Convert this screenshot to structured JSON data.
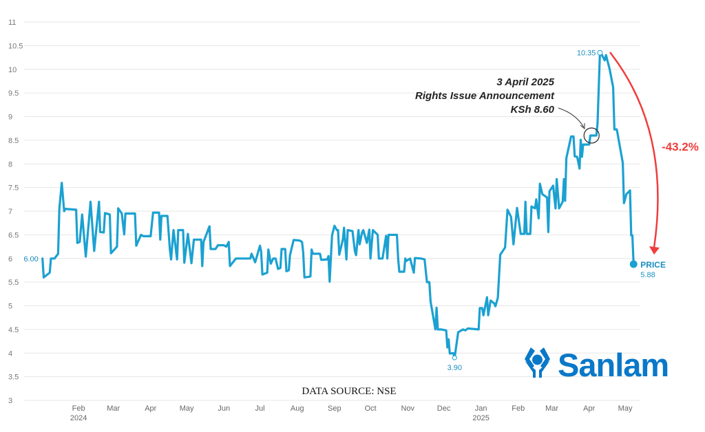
{
  "chart_data": {
    "type": "line",
    "title": "",
    "xlabel": "",
    "ylabel": "",
    "ylim": [
      3,
      11
    ],
    "yticks": [
      "3",
      "3.5",
      "4",
      "4.5",
      "5",
      "5.5",
      "6",
      "6.5",
      "7",
      "7.5",
      "8",
      "8.5",
      "9",
      "9.5",
      "10",
      "10.5",
      "11"
    ],
    "xticks": [
      {
        "date": "2024-02-01",
        "label": "Feb",
        "year": "2024"
      },
      {
        "date": "2024-03-01",
        "label": "Mar"
      },
      {
        "date": "2024-04-01",
        "label": "Apr"
      },
      {
        "date": "2024-05-01",
        "label": "May"
      },
      {
        "date": "2024-06-01",
        "label": "Jun"
      },
      {
        "date": "2024-07-01",
        "label": "Jul"
      },
      {
        "date": "2024-08-01",
        "label": "Aug"
      },
      {
        "date": "2024-09-01",
        "label": "Sep"
      },
      {
        "date": "2024-10-01",
        "label": "Oct"
      },
      {
        "date": "2024-11-01",
        "label": "Nov"
      },
      {
        "date": "2024-12-01",
        "label": "Dec"
      },
      {
        "date": "2025-01-01",
        "label": "Jan",
        "year": "2025"
      },
      {
        "date": "2025-02-01",
        "label": "Feb"
      },
      {
        "date": "2025-03-01",
        "label": "Mar"
      },
      {
        "date": "2025-04-01",
        "label": "Apr"
      },
      {
        "date": "2025-05-01",
        "label": "May"
      }
    ],
    "grid": true,
    "series_color": "#1ba1d1",
    "series": [
      {
        "name": "PRICE",
        "points": [
          [
            "2024-01-02",
            6.0
          ],
          [
            "2024-01-03",
            5.6
          ],
          [
            "2024-01-08",
            5.7
          ],
          [
            "2024-01-09",
            6.0
          ],
          [
            "2024-01-12",
            6.0
          ],
          [
            "2024-01-15",
            6.1
          ],
          [
            "2024-01-16",
            7.05
          ],
          [
            "2024-01-18",
            7.6
          ],
          [
            "2024-01-20",
            7.0
          ],
          [
            "2024-01-21",
            7.05
          ],
          [
            "2024-01-30",
            7.03
          ],
          [
            "2024-01-31",
            6.33
          ],
          [
            "2024-02-02",
            6.35
          ],
          [
            "2024-02-04",
            6.93
          ],
          [
            "2024-02-07",
            6.04
          ],
          [
            "2024-02-11",
            7.2
          ],
          [
            "2024-02-14",
            6.16
          ],
          [
            "2024-02-18",
            7.2
          ],
          [
            "2024-02-19",
            6.56
          ],
          [
            "2024-02-22",
            6.55
          ],
          [
            "2024-02-23",
            6.96
          ],
          [
            "2024-02-27",
            6.93
          ],
          [
            "2024-02-28",
            6.11
          ],
          [
            "2024-03-04",
            6.25
          ],
          [
            "2024-03-05",
            7.06
          ],
          [
            "2024-03-08",
            6.95
          ],
          [
            "2024-03-10",
            6.51
          ],
          [
            "2024-03-11",
            6.95
          ],
          [
            "2024-03-19",
            6.95
          ],
          [
            "2024-03-20",
            6.27
          ],
          [
            "2024-03-24",
            6.5
          ],
          [
            "2024-03-26",
            6.47
          ],
          [
            "2024-04-01",
            6.47
          ],
          [
            "2024-04-03",
            6.97
          ],
          [
            "2024-04-08",
            6.97
          ],
          [
            "2024-04-09",
            6.4
          ],
          [
            "2024-04-10",
            6.9
          ],
          [
            "2024-04-15",
            6.9
          ],
          [
            "2024-04-17",
            6.2
          ],
          [
            "2024-04-18",
            5.98
          ],
          [
            "2024-04-20",
            6.6
          ],
          [
            "2024-04-23",
            5.98
          ],
          [
            "2024-04-24",
            6.6
          ],
          [
            "2024-04-28",
            6.6
          ],
          [
            "2024-04-29",
            5.91
          ],
          [
            "2024-05-02",
            6.52
          ],
          [
            "2024-05-05",
            5.9
          ],
          [
            "2024-05-07",
            6.4
          ],
          [
            "2024-05-13",
            6.4
          ],
          [
            "2024-05-14",
            5.84
          ],
          [
            "2024-05-15",
            6.35
          ],
          [
            "2024-05-20",
            6.68
          ],
          [
            "2024-05-21",
            6.2
          ],
          [
            "2024-05-25",
            6.2
          ],
          [
            "2024-05-27",
            6.28
          ],
          [
            "2024-06-01",
            6.28
          ],
          [
            "2024-06-03",
            6.25
          ],
          [
            "2024-06-05",
            6.35
          ],
          [
            "2024-06-06",
            5.84
          ],
          [
            "2024-06-11",
            6.0
          ],
          [
            "2024-06-23",
            6.0
          ],
          [
            "2024-06-24",
            6.1
          ],
          [
            "2024-06-27",
            5.92
          ],
          [
            "2024-07-01",
            6.27
          ],
          [
            "2024-07-02",
            6.15
          ],
          [
            "2024-07-03",
            5.66
          ],
          [
            "2024-07-07",
            5.7
          ],
          [
            "2024-07-08",
            6.19
          ],
          [
            "2024-07-10",
            5.89
          ],
          [
            "2024-07-12",
            6.0
          ],
          [
            "2024-07-14",
            6.0
          ],
          [
            "2024-07-16",
            5.78
          ],
          [
            "2024-07-18",
            5.8
          ],
          [
            "2024-07-19",
            6.2
          ],
          [
            "2024-07-22",
            6.2
          ],
          [
            "2024-07-23",
            5.73
          ],
          [
            "2024-07-25",
            5.75
          ],
          [
            "2024-07-26",
            6.07
          ],
          [
            "2024-07-29",
            6.39
          ],
          [
            "2024-08-03",
            6.38
          ],
          [
            "2024-08-05",
            6.35
          ],
          [
            "2024-08-06",
            6.13
          ],
          [
            "2024-08-07",
            5.6
          ],
          [
            "2024-08-12",
            5.62
          ],
          [
            "2024-08-13",
            6.19
          ],
          [
            "2024-08-14",
            6.1
          ],
          [
            "2024-08-20",
            6.1
          ],
          [
            "2024-08-21",
            5.97
          ],
          [
            "2024-08-26",
            5.98
          ],
          [
            "2024-08-27",
            6.05
          ],
          [
            "2024-08-28",
            5.51
          ],
          [
            "2024-08-30",
            6.49
          ],
          [
            "2024-09-01",
            6.69
          ],
          [
            "2024-09-03",
            6.6
          ],
          [
            "2024-09-04",
            6.6
          ],
          [
            "2024-09-05",
            6.08
          ],
          [
            "2024-09-08",
            6.4
          ],
          [
            "2024-09-09",
            6.65
          ],
          [
            "2024-09-11",
            5.98
          ],
          [
            "2024-09-12",
            6.6
          ],
          [
            "2024-09-16",
            6.58
          ],
          [
            "2024-09-18",
            6.16
          ],
          [
            "2024-09-19",
            6.07
          ],
          [
            "2024-09-21",
            6.6
          ],
          [
            "2024-09-22",
            6.3
          ],
          [
            "2024-09-24",
            6.55
          ],
          [
            "2024-09-25",
            6.6
          ],
          [
            "2024-09-28",
            6.33
          ],
          [
            "2024-09-30",
            6.61
          ],
          [
            "2024-10-01",
            6.0
          ],
          [
            "2024-10-03",
            6.6
          ],
          [
            "2024-10-07",
            6.5
          ],
          [
            "2024-10-08",
            6.0
          ],
          [
            "2024-10-11",
            6.0
          ],
          [
            "2024-10-14",
            6.48
          ],
          [
            "2024-10-15",
            6.0
          ],
          [
            "2024-10-16",
            6.5
          ],
          [
            "2024-10-23",
            6.5
          ],
          [
            "2024-10-24",
            6.0
          ],
          [
            "2024-10-25",
            5.72
          ],
          [
            "2024-10-29",
            5.72
          ],
          [
            "2024-10-30",
            6.0
          ],
          [
            "2024-10-31",
            5.95
          ],
          [
            "2024-11-03",
            6.0
          ],
          [
            "2024-11-06",
            5.7
          ],
          [
            "2024-11-07",
            6.01
          ],
          [
            "2024-11-12",
            6.0
          ],
          [
            "2024-11-15",
            5.98
          ],
          [
            "2024-11-17",
            5.5
          ],
          [
            "2024-11-19",
            5.5
          ],
          [
            "2024-11-20",
            5.09
          ],
          [
            "2024-11-24",
            4.5
          ],
          [
            "2024-11-25",
            4.96
          ],
          [
            "2024-11-26",
            4.5
          ],
          [
            "2024-11-29",
            4.5
          ],
          [
            "2024-12-03",
            4.48
          ],
          [
            "2024-12-04",
            4.12
          ],
          [
            "2024-12-05",
            4.29
          ],
          [
            "2024-12-06",
            3.99
          ],
          [
            "2024-12-09",
            4.0
          ],
          [
            "2024-12-10",
            3.9
          ],
          [
            "2024-12-13",
            4.44
          ],
          [
            "2024-12-17",
            4.5
          ],
          [
            "2024-12-19",
            4.48
          ],
          [
            "2024-12-21",
            4.52
          ],
          [
            "2024-12-30",
            4.5
          ],
          [
            "2024-12-31",
            4.95
          ],
          [
            "2025-01-02",
            4.95
          ],
          [
            "2025-01-03",
            4.8
          ],
          [
            "2025-01-06",
            5.18
          ],
          [
            "2025-01-07",
            4.8
          ],
          [
            "2025-01-09",
            5.11
          ],
          [
            "2025-01-12",
            5.05
          ],
          [
            "2025-01-13",
            4.99
          ],
          [
            "2025-01-15",
            5.17
          ],
          [
            "2025-01-17",
            6.08
          ],
          [
            "2025-01-21",
            6.23
          ],
          [
            "2025-01-23",
            7.03
          ],
          [
            "2025-01-26",
            6.88
          ],
          [
            "2025-01-28",
            6.3
          ],
          [
            "2025-01-31",
            7.07
          ],
          [
            "2025-02-03",
            6.52
          ],
          [
            "2025-02-06",
            6.52
          ],
          [
            "2025-02-07",
            7.2
          ],
          [
            "2025-02-08",
            6.52
          ],
          [
            "2025-02-11",
            6.52
          ],
          [
            "2025-02-12",
            7.1
          ],
          [
            "2025-02-15",
            7.06
          ],
          [
            "2025-02-16",
            7.25
          ],
          [
            "2025-02-18",
            6.85
          ],
          [
            "2025-02-19",
            7.58
          ],
          [
            "2025-02-21",
            7.36
          ],
          [
            "2025-02-25",
            7.29
          ],
          [
            "2025-02-26",
            6.56
          ],
          [
            "2025-02-27",
            7.42
          ],
          [
            "2025-03-02",
            7.54
          ],
          [
            "2025-03-04",
            7.06
          ],
          [
            "2025-03-05",
            7.68
          ],
          [
            "2025-03-07",
            7.06
          ],
          [
            "2025-03-10",
            7.2
          ],
          [
            "2025-03-11",
            7.68
          ],
          [
            "2025-03-12",
            7.22
          ],
          [
            "2025-03-13",
            8.12
          ],
          [
            "2025-03-17",
            8.58
          ],
          [
            "2025-03-19",
            8.58
          ],
          [
            "2025-03-20",
            8.16
          ],
          [
            "2025-03-22",
            8.15
          ],
          [
            "2025-03-24",
            7.9
          ],
          [
            "2025-03-25",
            8.51
          ],
          [
            "2025-03-26",
            8.15
          ],
          [
            "2025-03-27",
            8.41
          ],
          [
            "2025-04-01",
            8.41
          ],
          [
            "2025-04-02",
            8.6
          ],
          [
            "2025-04-07",
            8.6
          ],
          [
            "2025-04-08",
            8.85
          ],
          [
            "2025-04-10",
            10.35
          ],
          [
            "2025-04-11",
            10.33
          ],
          [
            "2025-04-14",
            10.19
          ],
          [
            "2025-04-15",
            10.3
          ],
          [
            "2025-04-18",
            10.01
          ],
          [
            "2025-04-21",
            9.62
          ],
          [
            "2025-04-22",
            8.73
          ],
          [
            "2025-04-24",
            8.73
          ],
          [
            "2025-04-29",
            8.02
          ],
          [
            "2025-04-30",
            7.17
          ],
          [
            "2025-05-02",
            7.36
          ],
          [
            "2025-05-05",
            7.44
          ],
          [
            "2025-05-06",
            6.49
          ],
          [
            "2025-05-07",
            6.49
          ],
          [
            "2025-05-08",
            5.88
          ]
        ]
      }
    ],
    "point_labels": {
      "start": {
        "date": "2024-01-02",
        "value": 6.0,
        "text": "6.00"
      },
      "low": {
        "date": "2024-12-10",
        "value": 3.9,
        "text": "3.90"
      },
      "high": {
        "date": "2025-04-10",
        "value": 10.35,
        "text": "10.35"
      },
      "last": {
        "date": "2025-05-08",
        "value": 5.88,
        "text": "5.88",
        "name": "PRICE"
      }
    },
    "annotation": {
      "date": "2025-04-03",
      "value": 8.6,
      "line1": "3 April 2025",
      "line2": "Rights Issue Announcement",
      "line3": "KSh 8.60"
    },
    "change": {
      "text": "-43.2%",
      "color": "#f03c3c"
    },
    "source": "DATA SOURCE: NSE",
    "logo": {
      "text": "Sanlam",
      "color": "#0a78c8"
    }
  }
}
